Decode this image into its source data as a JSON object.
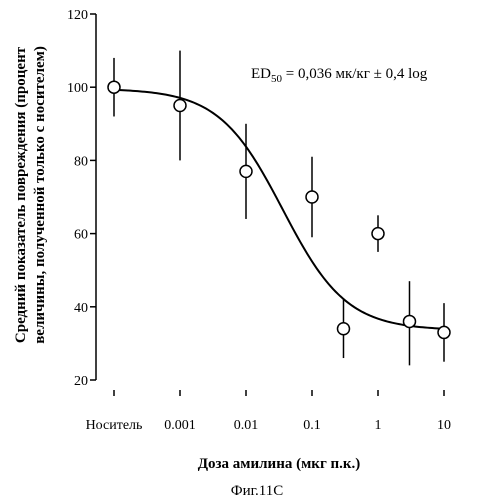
{
  "chart_data": {
    "type": "scatter",
    "x_scale": "log",
    "x_categories": [
      "Носитель",
      "0.001",
      "0.01",
      "0.1",
      "1",
      "10"
    ],
    "y_ticks": [
      20,
      40,
      60,
      80,
      100,
      120
    ],
    "ylim": [
      20,
      120
    ],
    "xlabel": "Доза амилина  (мкг п.к.)",
    "ylabel_line1": "Средний показатель повреждения (процент",
    "ylabel_line2": "величины, полученной только с носителем)",
    "annotation": {
      "prefix": "ED",
      "subscript": "50",
      "suffix": " = 0,036 мк/кг ± 0,4 log"
    },
    "points": [
      {
        "x": "vehicle",
        "y": 100,
        "err_low": 92,
        "err_high": 108
      },
      {
        "x": 0.001,
        "y": 95,
        "err_low": 80,
        "err_high": 110
      },
      {
        "x": 0.01,
        "y": 77,
        "err_low": 64,
        "err_high": 90
      },
      {
        "x": 0.1,
        "y": 70,
        "err_low": 59,
        "err_high": 81
      },
      {
        "x": 0.3,
        "y": 34,
        "err_low": 26,
        "err_high": 42
      },
      {
        "x": 1,
        "y": 60,
        "err_low": 55,
        "err_high": 65
      },
      {
        "x": 3,
        "y": 36,
        "err_low": 24,
        "err_high": 47
      },
      {
        "x": 10,
        "y": 33,
        "err_low": 25,
        "err_high": 41
      }
    ],
    "fit_curve": {
      "type": "sigmoid",
      "top": 99.6,
      "bottom": 33.6,
      "ec50": 0.036,
      "hill": 0.9,
      "x_from": "vehicle",
      "x_to": 10
    }
  },
  "caption": "Фиг.11С"
}
